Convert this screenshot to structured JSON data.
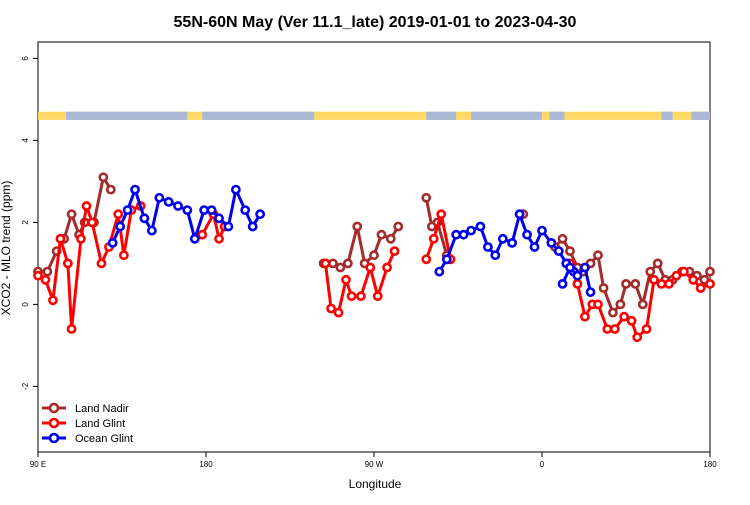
{
  "chart_data": {
    "type": "line",
    "title": "55N-60N May (Ver 11.1_late)   2019-01-01 to 2023-04-30",
    "xlabel": "Longitude",
    "ylabel": "XCO2 - MLO trend (ppm)",
    "xlim": [
      90,
      450
    ],
    "ylim": [
      -3.6,
      6.4
    ],
    "xticks": [
      {
        "value": 90,
        "label": "90 E"
      },
      {
        "value": 180,
        "label": "180"
      },
      {
        "value": 270,
        "label": "90 W"
      },
      {
        "value": 360,
        "label": "0"
      },
      {
        "value": 450,
        "label": "180"
      }
    ],
    "yticks": [
      -2,
      0,
      2,
      4,
      6
    ],
    "grid": false,
    "legend_position": "bottom-left",
    "map_strip": {
      "y_range": [
        4.5,
        4.7
      ],
      "land_color": "#ffd966",
      "ocean_color": "#a9b9d6"
    },
    "series": [
      {
        "name": "Land Nadir",
        "color": "#a52a2a",
        "segments": [
          [
            [
              90,
              0.8
            ],
            [
              95,
              0.8
            ],
            [
              100,
              1.3
            ],
            [
              104,
              1.6
            ],
            [
              108,
              2.2
            ],
            [
              112,
              1.7
            ],
            [
              115,
              2.0
            ],
            [
              120,
              2.0
            ],
            [
              125,
              3.1
            ],
            [
              129,
              2.8
            ]
          ],
          [
            [
              243,
              1.0
            ],
            [
              248,
              1.0
            ],
            [
              252,
              0.9
            ],
            [
              256,
              1.0
            ],
            [
              261,
              1.9
            ],
            [
              265,
              1.0
            ],
            [
              270,
              1.2
            ],
            [
              274,
              1.7
            ],
            [
              279,
              1.6
            ],
            [
              283,
              1.9
            ]
          ],
          [
            [
              298,
              2.6
            ],
            [
              301,
              1.9
            ],
            [
              304,
              2.0
            ],
            [
              309,
              1.2
            ]
          ],
          [
            [
              350,
              2.2
            ]
          ],
          [
            [
              367,
              1.4
            ],
            [
              371,
              1.6
            ],
            [
              375,
              1.3
            ],
            [
              379,
              0.9
            ],
            [
              382,
              0.8
            ],
            [
              386,
              1.0
            ],
            [
              390,
              1.2
            ],
            [
              393,
              0.4
            ],
            [
              398,
              -0.2
            ],
            [
              402,
              0.0
            ],
            [
              405,
              0.5
            ],
            [
              410,
              0.5
            ],
            [
              414,
              0.0
            ],
            [
              418,
              0.8
            ],
            [
              422,
              1.0
            ],
            [
              426,
              0.6
            ],
            [
              430,
              0.6
            ],
            [
              435,
              0.8
            ],
            [
              439,
              0.8
            ],
            [
              443,
              0.7
            ],
            [
              447,
              0.6
            ],
            [
              450,
              0.8
            ]
          ]
        ]
      },
      {
        "name": "Land Glint",
        "color": "#ff0000",
        "segments": [
          [
            [
              90,
              0.7
            ],
            [
              94,
              0.6
            ],
            [
              98,
              0.1
            ],
            [
              102,
              1.6
            ],
            [
              106,
              1.0
            ],
            [
              108,
              -0.6
            ],
            [
              113,
              1.6
            ],
            [
              116,
              2.4
            ],
            [
              119,
              2.0
            ],
            [
              124,
              1.0
            ],
            [
              128,
              1.4
            ],
            [
              133,
              2.2
            ],
            [
              136,
              1.2
            ],
            [
              140,
              2.3
            ],
            [
              145,
              2.4
            ]
          ],
          [
            [
              178,
              1.7
            ],
            [
              184,
              2.2
            ],
            [
              187,
              1.6
            ],
            [
              190,
              1.9
            ]
          ],
          [
            [
              244,
              1.0
            ],
            [
              247,
              -0.1
            ],
            [
              251,
              -0.2
            ],
            [
              255,
              0.6
            ],
            [
              258,
              0.2
            ],
            [
              263,
              0.2
            ],
            [
              268,
              0.9
            ],
            [
              272,
              0.2
            ],
            [
              277,
              0.9
            ],
            [
              281,
              1.3
            ]
          ],
          [
            [
              298,
              1.1
            ],
            [
              302,
              1.6
            ],
            [
              306,
              2.2
            ],
            [
              311,
              1.1
            ]
          ],
          [
            [
              375,
              1.0
            ],
            [
              379,
              0.5
            ],
            [
              383,
              -0.3
            ],
            [
              387,
              0.0
            ],
            [
              390,
              0.0
            ],
            [
              395,
              -0.6
            ],
            [
              399,
              -0.6
            ],
            [
              404,
              -0.3
            ],
            [
              408,
              -0.4
            ],
            [
              411,
              -0.8
            ],
            [
              416,
              -0.6
            ],
            [
              420,
              0.6
            ],
            [
              424,
              0.5
            ],
            [
              428,
              0.5
            ],
            [
              432,
              0.7
            ],
            [
              436,
              0.8
            ],
            [
              441,
              0.6
            ],
            [
              445,
              0.4
            ],
            [
              450,
              0.5
            ]
          ]
        ]
      },
      {
        "name": "Ocean Glint",
        "color": "#0000ee",
        "segments": [
          [
            [
              130,
              1.5
            ],
            [
              134,
              1.9
            ],
            [
              138,
              2.3
            ],
            [
              142,
              2.8
            ],
            [
              147,
              2.1
            ],
            [
              151,
              1.8
            ],
            [
              155,
              2.6
            ],
            [
              160,
              2.5
            ],
            [
              165,
              2.4
            ],
            [
              170,
              2.3
            ],
            [
              174,
              1.6
            ],
            [
              179,
              2.3
            ],
            [
              183,
              2.3
            ],
            [
              187,
              2.1
            ],
            [
              192,
              1.9
            ],
            [
              196,
              2.8
            ],
            [
              201,
              2.3
            ],
            [
              205,
              1.9
            ],
            [
              209,
              2.2
            ]
          ],
          [
            [
              305,
              0.8
            ],
            [
              309,
              1.1
            ],
            [
              314,
              1.7
            ],
            [
              318,
              1.7
            ],
            [
              322,
              1.8
            ],
            [
              327,
              1.9
            ],
            [
              331,
              1.4
            ],
            [
              335,
              1.2
            ],
            [
              339,
              1.6
            ],
            [
              344,
              1.5
            ],
            [
              348,
              2.2
            ],
            [
              352,
              1.7
            ],
            [
              356,
              1.4
            ],
            [
              360,
              1.8
            ],
            [
              365,
              1.5
            ],
            [
              369,
              1.3
            ],
            [
              373,
              1.0
            ],
            [
              377,
              0.8
            ]
          ],
          [
            [
              371,
              0.5
            ],
            [
              375,
              0.9
            ],
            [
              379,
              0.7
            ],
            [
              383,
              0.9
            ],
            [
              386,
              0.3
            ]
          ]
        ]
      }
    ]
  }
}
